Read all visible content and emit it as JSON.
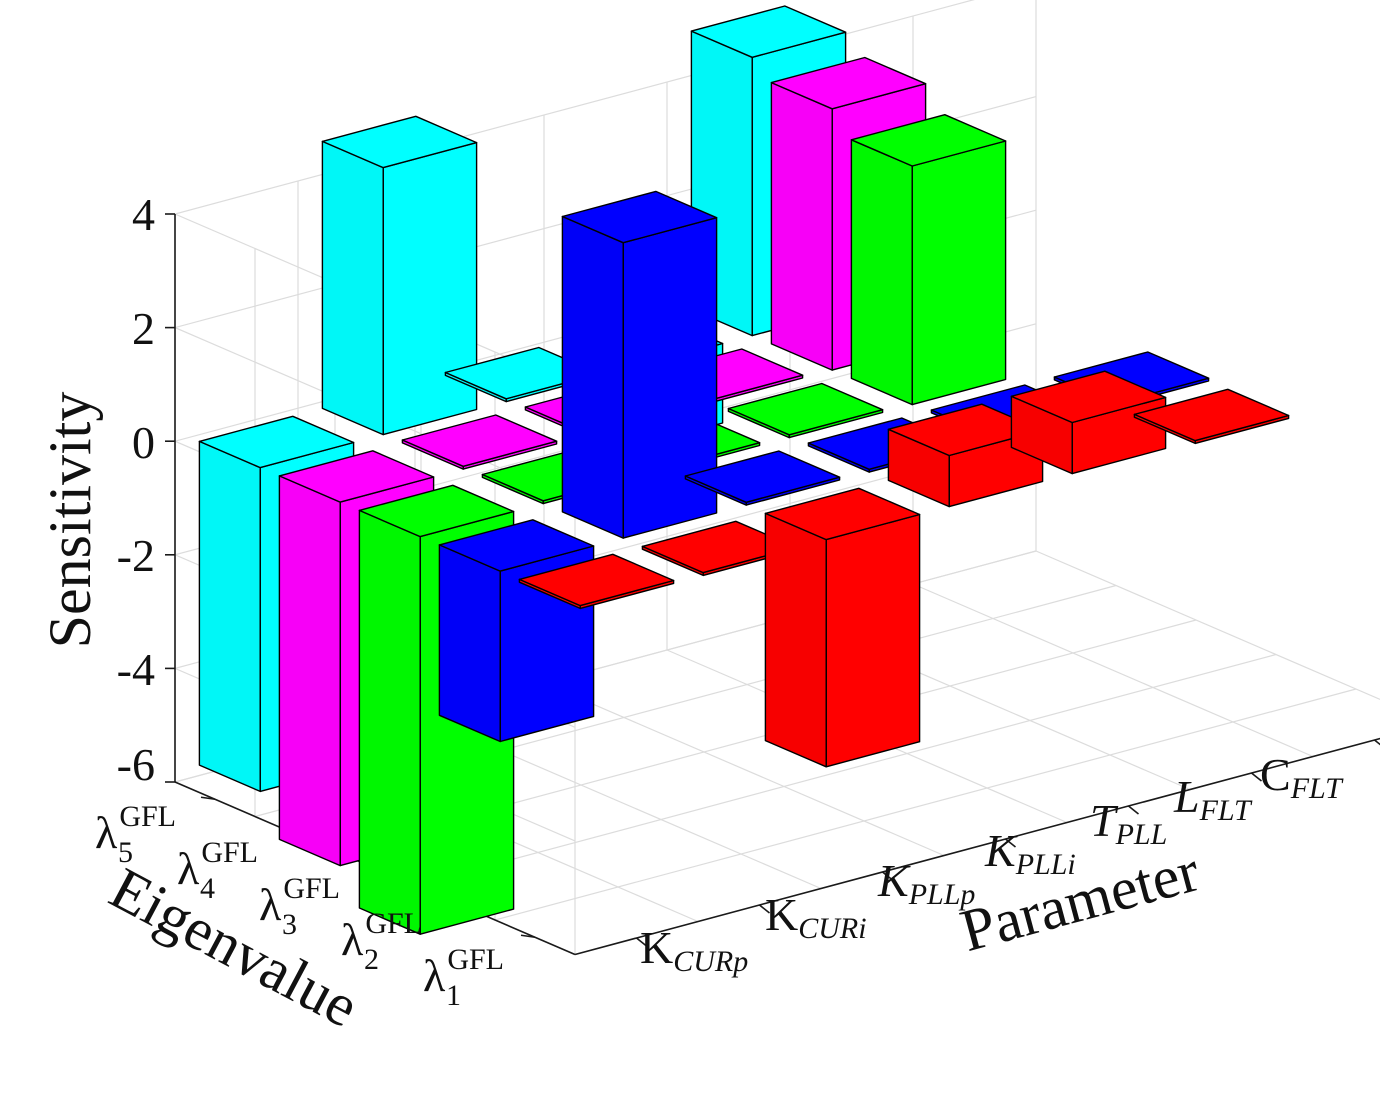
{
  "chart_data": {
    "type": "bar3d",
    "title": "",
    "xlabel": "Parameter",
    "ylabel": "Eigenvalue",
    "zlabel": "Sensitivity",
    "zlim": [
      -6,
      4
    ],
    "zticks": [
      "4",
      "2",
      "0",
      "-2",
      "-4",
      "-6"
    ],
    "x_categories": [
      {
        "base": "K",
        "sub": "CURp"
      },
      {
        "base": "K",
        "sub": "CURi"
      },
      {
        "base": "K",
        "sub": "PLLp"
      },
      {
        "base": "K",
        "sub": "PLLi"
      },
      {
        "base": "T",
        "sub": "PLL"
      },
      {
        "base": "L",
        "sub": "FLT"
      },
      {
        "base": "C",
        "sub": "FLT"
      }
    ],
    "y_categories": [
      {
        "base": "λ",
        "sub": "5",
        "sup": "GFL"
      },
      {
        "base": "λ",
        "sub": "4",
        "sup": "GFL"
      },
      {
        "base": "λ",
        "sub": "3",
        "sup": "GFL"
      },
      {
        "base": "λ",
        "sub": "2",
        "sup": "GFL"
      },
      {
        "base": "λ",
        "sub": "1",
        "sup": "GFL"
      }
    ],
    "series": [
      {
        "name": "λ5 GFL",
        "color": "#00ffff",
        "values": [
          -5.7,
          4.7,
          0.05,
          -1.4,
          4.9,
          0,
          0
        ]
      },
      {
        "name": "λ4 GFL",
        "color": "#ff00ff",
        "values": [
          -6.4,
          0.05,
          0.05,
          0.05,
          4.6,
          0,
          0
        ]
      },
      {
        "name": "λ3 GFL",
        "color": "#00ff00",
        "values": [
          -7.0,
          0.05,
          0.05,
          0.05,
          4.2,
          0,
          0
        ]
      },
      {
        "name": "λ2 GFL",
        "color": "#0000ff",
        "values": [
          -3.0,
          5.2,
          0.05,
          0.05,
          0.05,
          0.05,
          0
        ]
      },
      {
        "name": "λ1 GFL",
        "color": "#ff0000",
        "values": [
          -0.05,
          -0.05,
          -4.0,
          0.9,
          0.9,
          -0.05,
          0
        ]
      }
    ]
  }
}
